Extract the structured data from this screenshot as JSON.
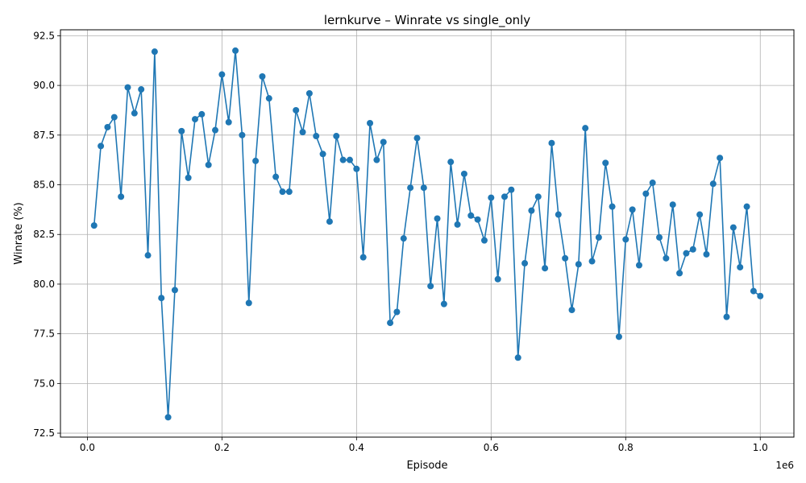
{
  "chart_data": {
    "type": "line",
    "title": "lernkurve – Winrate vs single_only",
    "xlabel": "Episode",
    "ylabel": "Winrate (%)",
    "x_offset_label": "1e6",
    "xlim": [
      -40000,
      1050000
    ],
    "ylim": [
      72.3,
      92.8
    ],
    "grid": true,
    "marker": "circle",
    "color": "#1f77b4",
    "x_ticks": [
      0,
      0.2,
      0.4,
      0.6,
      0.8,
      1.0
    ],
    "x_tick_labels": [
      "0.0",
      "0.2",
      "0.4",
      "0.6",
      "0.8",
      "1.0"
    ],
    "y_ticks": [
      72.5,
      75,
      77.5,
      80,
      82.5,
      85,
      87.5,
      90,
      92.5
    ],
    "y_tick_labels": [
      "72.5",
      "75.0",
      "77.5",
      "80.0",
      "82.5",
      "85.0",
      "87.5",
      "90.0",
      "92.5"
    ],
    "series": [
      {
        "x": [
          10000,
          20000,
          30000,
          40000,
          50000,
          60000,
          70000,
          80000,
          90000,
          100000,
          110000,
          120000,
          130000,
          140000,
          150000,
          160000,
          170000,
          180000,
          190000,
          200000,
          210000,
          220000,
          230000,
          240000,
          250000,
          260000,
          270000,
          280000,
          290000,
          300000,
          310000,
          320000,
          330000,
          340000,
          350000,
          360000,
          370000,
          380000,
          390000,
          400000,
          410000,
          420000,
          430000,
          440000,
          450000,
          460000,
          470000,
          480000,
          490000,
          500000,
          510000,
          520000,
          530000,
          540000,
          550000,
          560000,
          570000,
          580000,
          590000,
          600000,
          610000,
          620000,
          630000,
          640000,
          650000,
          660000,
          670000,
          680000,
          690000,
          700000,
          710000,
          720000,
          730000,
          740000,
          750000,
          760000,
          770000,
          780000,
          790000,
          800000,
          810000,
          820000,
          830000,
          840000,
          850000,
          860000,
          870000,
          880000,
          890000,
          900000,
          910000,
          920000,
          930000,
          940000,
          950000,
          960000,
          970000,
          980000,
          990000,
          1000000
        ],
        "y": [
          82.95,
          86.95,
          87.9,
          88.4,
          84.4,
          89.9,
          88.6,
          89.8,
          81.45,
          91.7,
          79.3,
          73.3,
          79.7,
          87.7,
          85.35,
          88.3,
          88.55,
          86.0,
          87.75,
          90.55,
          88.15,
          91.75,
          87.5,
          79.05,
          86.2,
          90.45,
          89.35,
          85.4,
          84.65,
          84.65,
          88.75,
          87.65,
          89.6,
          87.45,
          86.55,
          83.15,
          87.45,
          86.25,
          86.25,
          85.8,
          81.35,
          88.1,
          86.25,
          87.15,
          78.05,
          78.6,
          82.3,
          84.85,
          87.35,
          84.85,
          79.9,
          83.3,
          79.0,
          86.15,
          83.0,
          85.55,
          83.45,
          83.25,
          82.2,
          84.35,
          80.25,
          84.4,
          84.75,
          76.3,
          81.05,
          83.7,
          84.4,
          80.8,
          87.1,
          83.5,
          81.3,
          78.7,
          81.0,
          87.85,
          81.15,
          82.35,
          86.1,
          83.9,
          77.35,
          82.25,
          83.75,
          80.95,
          84.55,
          85.1,
          82.35,
          81.3,
          84.0,
          80.55,
          81.55,
          81.75,
          83.5,
          81.5,
          85.05,
          86.35,
          78.35,
          82.85,
          80.85,
          83.9,
          79.65,
          79.4
        ]
      }
    ]
  }
}
